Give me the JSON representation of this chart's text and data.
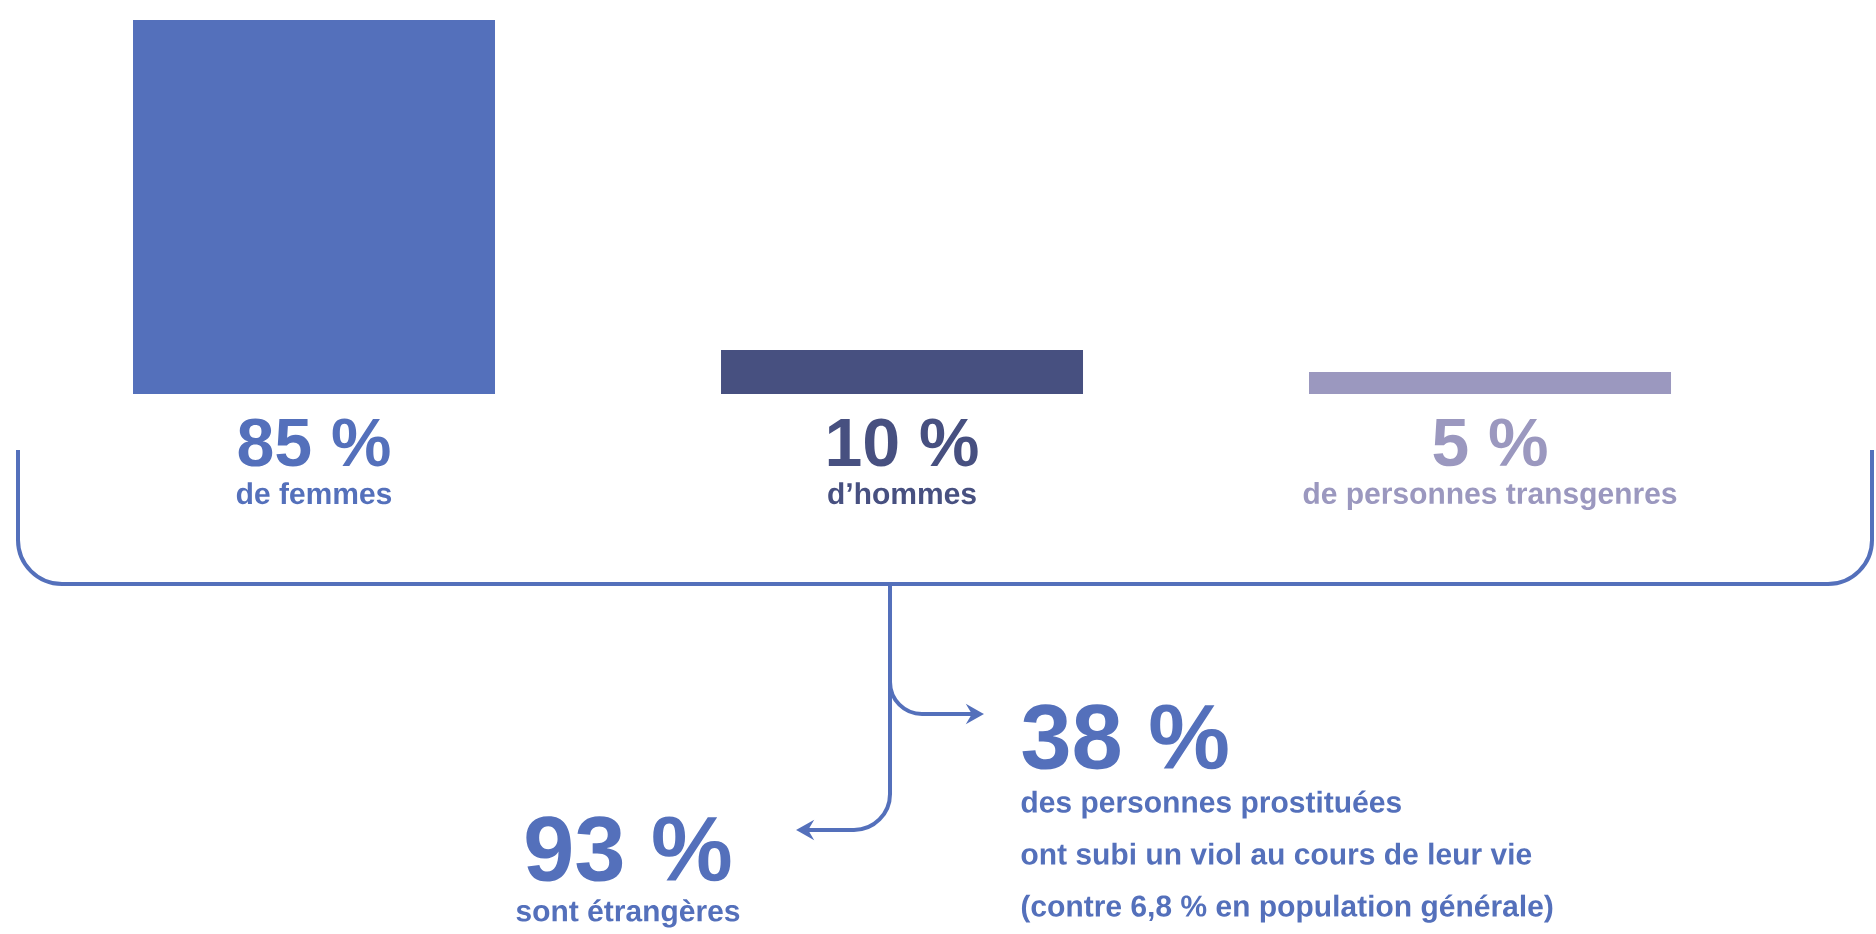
{
  "chart_data": {
    "type": "bar",
    "categories": [
      "de femmes",
      "d’hommes",
      "de personnes transgenres"
    ],
    "values": [
      85,
      10,
      5
    ],
    "colors": [
      "#5470bb",
      "#475080",
      "#9b98bf"
    ],
    "value_labels": [
      "85 %",
      "10 %",
      "5 %"
    ],
    "annotations": [
      "93 %",
      "sont étrangères",
      "38 %",
      "des personnes prostituées",
      "ont subi un viol au cours de leur vie",
      "(contre 6,8 % en population générale)"
    ]
  }
}
